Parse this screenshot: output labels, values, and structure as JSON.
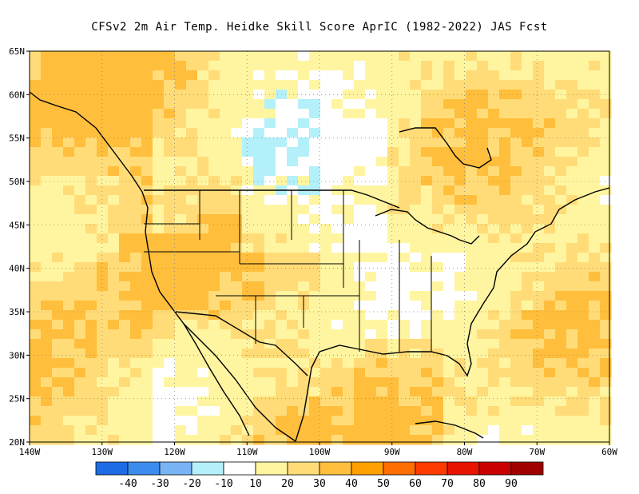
{
  "title": "CFSv2  2m Air Temp. Heidke Skill Score AprIC (1982-2022) JAS Fcst",
  "map": {
    "lon_range": [
      -140,
      -60
    ],
    "lat_range": [
      20,
      65
    ],
    "grid": "dotted",
    "lat_ticks": [
      {
        "value": 65,
        "label": "65N"
      },
      {
        "value": 60,
        "label": "60N"
      },
      {
        "value": 55,
        "label": "55N"
      },
      {
        "value": 50,
        "label": "50N"
      },
      {
        "value": 45,
        "label": "45N"
      },
      {
        "value": 40,
        "label": "40N"
      },
      {
        "value": 35,
        "label": "35N"
      },
      {
        "value": 30,
        "label": "30N"
      },
      {
        "value": 25,
        "label": "25N"
      },
      {
        "value": 20,
        "label": "20N"
      }
    ],
    "lon_ticks": [
      {
        "value": -140,
        "label": "140W"
      },
      {
        "value": -130,
        "label": "130W"
      },
      {
        "value": -120,
        "label": "120W"
      },
      {
        "value": -110,
        "label": "110W"
      },
      {
        "value": -100,
        "label": "100W"
      },
      {
        "value": -90,
        "label": "90W"
      },
      {
        "value": -80,
        "label": "80W"
      },
      {
        "value": -70,
        "label": "70W"
      },
      {
        "value": -60,
        "label": "60W"
      }
    ]
  },
  "colorbar": {
    "bins": [
      {
        "color": "#1e6be6"
      },
      {
        "color": "#3c8cf0"
      },
      {
        "color": "#78b4f5"
      },
      {
        "color": "#b4f0fa"
      },
      {
        "color": "#ffffff"
      },
      {
        "color": "#fff5a0"
      },
      {
        "color": "#ffdc78"
      },
      {
        "color": "#ffbe3c"
      },
      {
        "color": "#ffa000"
      },
      {
        "color": "#ff6e00"
      },
      {
        "color": "#ff3c00"
      },
      {
        "color": "#e61400"
      },
      {
        "color": "#c80000"
      },
      {
        "color": "#a00000"
      }
    ],
    "labels": [
      "-40",
      "-30",
      "-20",
      "-10",
      "10",
      "20",
      "30",
      "40",
      "50",
      "60",
      "70",
      "80",
      "90"
    ]
  }
}
